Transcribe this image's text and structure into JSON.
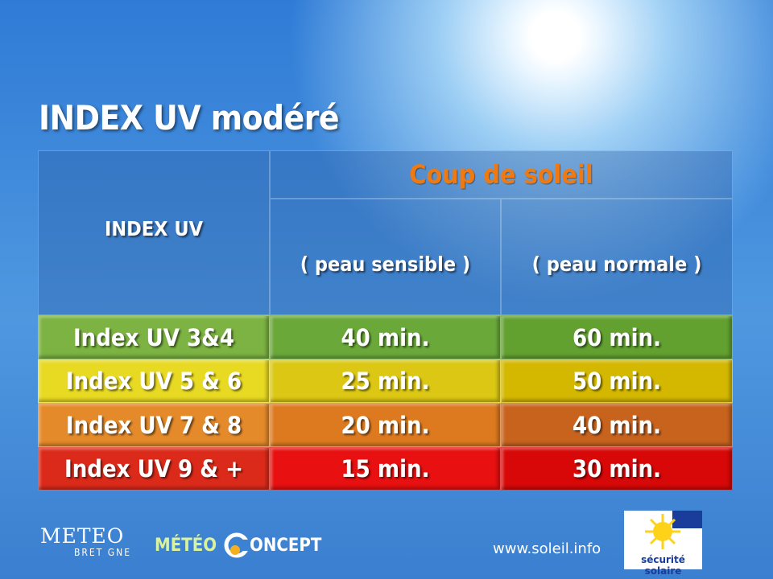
{
  "title": "INDEX UV modéré",
  "table": {
    "header": {
      "index": "INDEX UV",
      "group": "Coup de soleil",
      "columns": [
        "( peau sensible )",
        "( peau normale )"
      ]
    },
    "rows": [
      [
        "Index UV 3&4",
        "40 min.",
        "60 min."
      ],
      [
        "Index UV 5 & 6",
        "25 min.",
        "50 min."
      ],
      [
        "Index UV 7 & 8",
        "20 min.",
        "40 min."
      ],
      [
        "Index UV 9 & +",
        "15 min.",
        "30 min."
      ]
    ]
  },
  "footer": {
    "logo1": [
      "METEO",
      "BRET GNE"
    ],
    "logo2": [
      "MÉTÉO",
      "ONCEPT"
    ],
    "url": "www.soleil.info",
    "badge": "sécurité solaire"
  }
}
